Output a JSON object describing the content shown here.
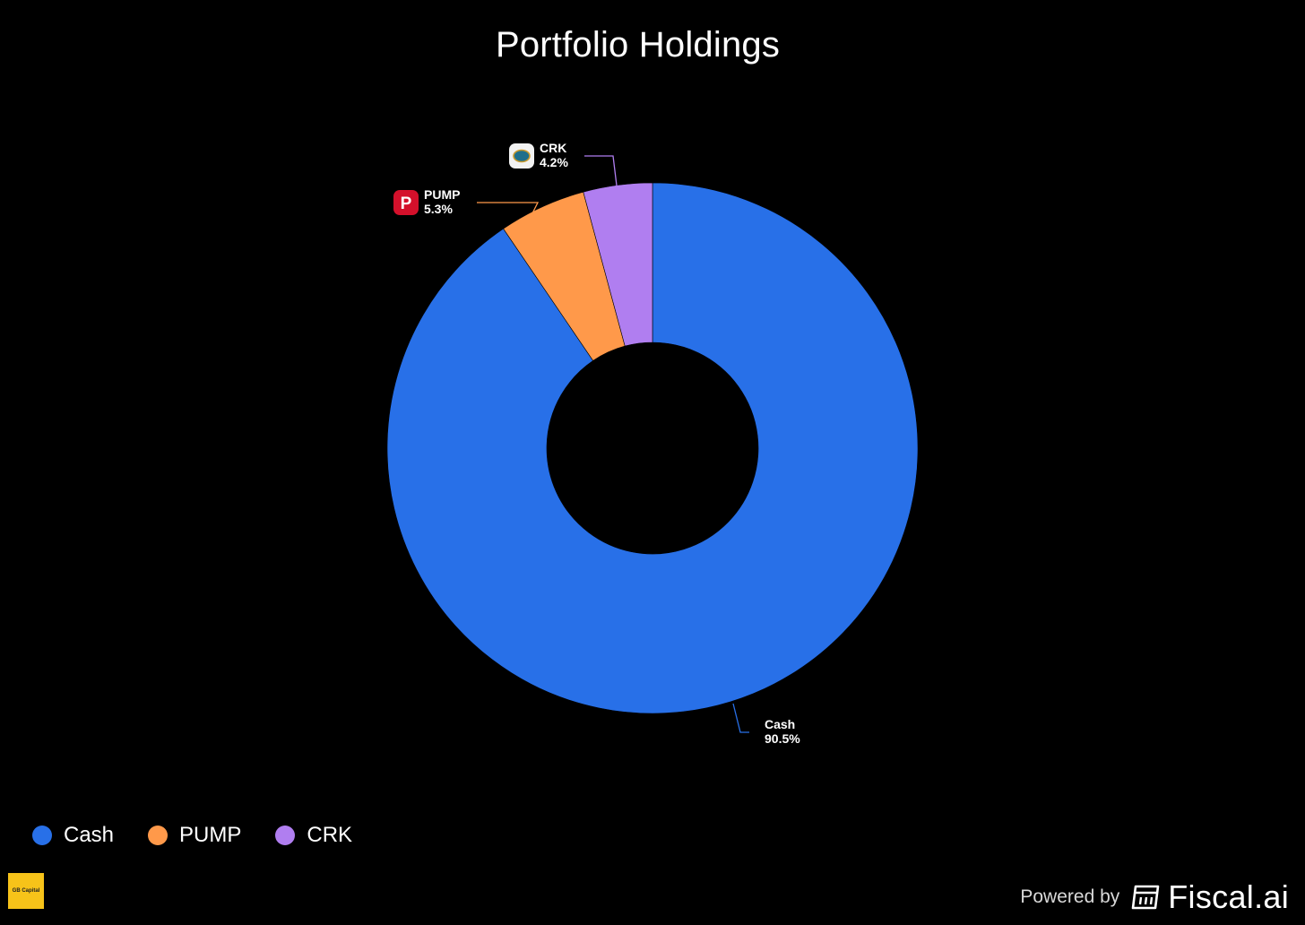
{
  "chart_data": {
    "type": "pie",
    "variant": "donut",
    "title": "Portfolio Holdings",
    "slices": [
      {
        "label": "Cash",
        "value": 90.5,
        "pct_label": "90.5%",
        "color": "#2870e8",
        "icon": null
      },
      {
        "label": "PUMP",
        "value": 5.3,
        "pct_label": "5.3%",
        "color": "#ff994a",
        "icon": "pump-logo-icon"
      },
      {
        "label": "CRK",
        "value": 4.2,
        "pct_label": "4.2%",
        "color": "#b07ef0",
        "icon": "crk-logo-icon"
      }
    ],
    "start_angle": "12 o'clock",
    "direction": "clockwise",
    "legend_position": "bottom-left"
  },
  "legend": {
    "items": [
      {
        "label": "Cash",
        "color": "#2870e8"
      },
      {
        "label": "PUMP",
        "color": "#ff994a"
      },
      {
        "label": "CRK",
        "color": "#b07ef0"
      }
    ]
  },
  "footer": {
    "brand_logo_text": "GB Capital",
    "powered_by": "Powered by",
    "fiscal_name": "Fiscal.ai"
  },
  "colors": {
    "background": "#000000",
    "text": "#ffffff"
  }
}
